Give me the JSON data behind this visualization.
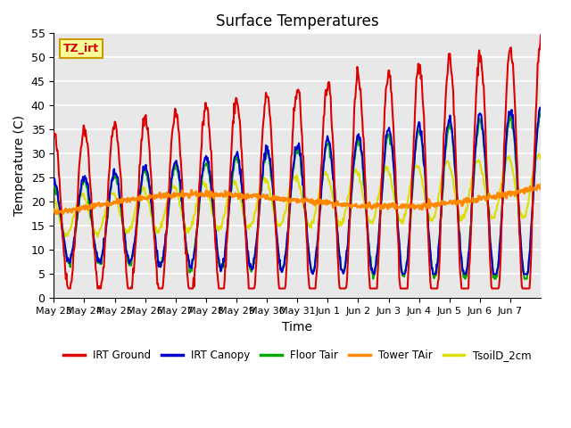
{
  "title": "Surface Temperatures",
  "xlabel": "Time",
  "ylabel": "Temperature (C)",
  "annotation_text": "TZ_irt",
  "annotation_color": "#cc0000",
  "annotation_bg": "#ffff99",
  "annotation_border": "#cc9900",
  "ylim": [
    0,
    55
  ],
  "xlim_start": 0,
  "xlim_end": 16,
  "xtick_positions": [
    0,
    1,
    2,
    3,
    4,
    5,
    6,
    7,
    8,
    9,
    10,
    11,
    12,
    13,
    14,
    15
  ],
  "xtick_labels": [
    "May 23",
    "May 24",
    "May 25",
    "May 26",
    "May 27",
    "May 28",
    "May 29",
    "May 30",
    "May 31",
    "Jun 1",
    "Jun 2",
    "Jun 3",
    "Jun 4",
    "Jun 5",
    "Jun 6",
    "Jun 7"
  ],
  "legend_entries": [
    "IRT Ground",
    "IRT Canopy",
    "Floor Tair",
    "Tower TAir",
    "TsoilD_2cm"
  ],
  "legend_colors": [
    "#dd0000",
    "#0000cc",
    "#00aa00",
    "#ff8800",
    "#dddd00"
  ],
  "line_widths": [
    1.5,
    1.5,
    1.5,
    2.0,
    1.5
  ],
  "bg_color": "#e8e8e8",
  "grid_color": "#ffffff",
  "n_days": 16,
  "points_per_day": 48
}
